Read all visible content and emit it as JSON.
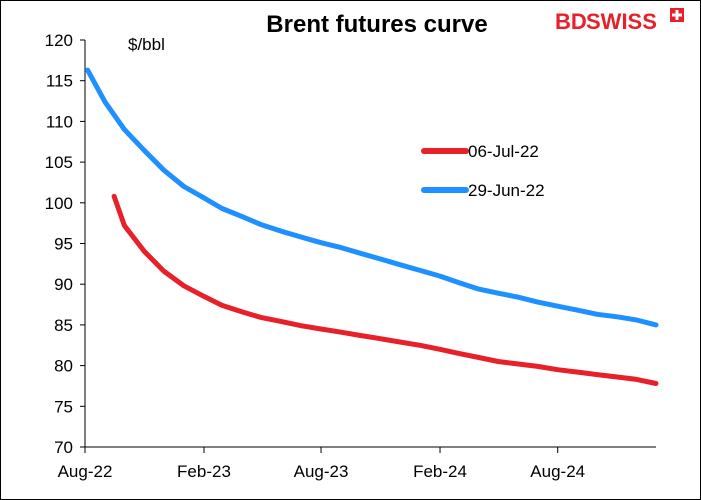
{
  "chart_data": {
    "type": "line",
    "title": "Brent futures curve",
    "ylabel": "$/bbl",
    "xlabel": "",
    "ylim": [
      70,
      120
    ],
    "yticks": [
      70,
      75,
      80,
      85,
      90,
      95,
      100,
      105,
      110,
      115,
      120
    ],
    "xlim": [
      "2022-08-01",
      "2024-12-31"
    ],
    "xticks": [
      {
        "date": "2022-08-01",
        "label": "Aug-22"
      },
      {
        "date": "2023-02-01",
        "label": "Feb-23"
      },
      {
        "date": "2023-08-01",
        "label": "Aug-23"
      },
      {
        "date": "2024-02-01",
        "label": "Feb-24"
      },
      {
        "date": "2024-08-01",
        "label": "Aug-24"
      }
    ],
    "grid": false,
    "legend_position": "right",
    "series": [
      {
        "name": "06-Jul-22",
        "color": "#e8202a",
        "x": [
          "2022-09-15",
          "2022-10-01",
          "2022-11-01",
          "2022-12-01",
          "2023-01-01",
          "2023-02-01",
          "2023-03-01",
          "2023-04-01",
          "2023-05-01",
          "2023-06-01",
          "2023-07-01",
          "2023-08-01",
          "2023-09-01",
          "2023-10-01",
          "2023-11-01",
          "2023-12-01",
          "2024-01-01",
          "2024-02-01",
          "2024-03-01",
          "2024-04-01",
          "2024-05-01",
          "2024-06-01",
          "2024-07-01",
          "2024-08-01",
          "2024-09-01",
          "2024-10-01",
          "2024-11-01",
          "2024-12-01",
          "2024-12-31"
        ],
        "y": [
          100.8,
          97.2,
          94.0,
          91.6,
          89.8,
          88.5,
          87.4,
          86.6,
          85.9,
          85.4,
          84.9,
          84.5,
          84.1,
          83.7,
          83.3,
          82.9,
          82.5,
          82.0,
          81.5,
          81.0,
          80.5,
          80.2,
          79.9,
          79.5,
          79.2,
          78.9,
          78.6,
          78.3,
          77.8
        ]
      },
      {
        "name": "29-Jun-22",
        "color": "#1e90ff",
        "x": [
          "2022-08-05",
          "2022-09-01",
          "2022-10-01",
          "2022-11-01",
          "2022-12-01",
          "2023-01-01",
          "2023-02-01",
          "2023-03-01",
          "2023-04-01",
          "2023-05-01",
          "2023-06-01",
          "2023-07-01",
          "2023-08-01",
          "2023-09-01",
          "2023-10-01",
          "2023-11-01",
          "2023-12-01",
          "2024-01-01",
          "2024-02-01",
          "2024-03-01",
          "2024-04-01",
          "2024-05-01",
          "2024-06-01",
          "2024-07-01",
          "2024-08-01",
          "2024-09-01",
          "2024-10-01",
          "2024-11-01",
          "2024-12-01",
          "2024-12-31"
        ],
        "y": [
          116.3,
          112.4,
          109.0,
          106.4,
          104.0,
          102.0,
          100.6,
          99.3,
          98.3,
          97.3,
          96.5,
          95.8,
          95.1,
          94.5,
          93.8,
          93.1,
          92.4,
          91.7,
          91.0,
          90.2,
          89.4,
          88.9,
          88.4,
          87.8,
          87.3,
          86.8,
          86.3,
          86.0,
          85.6,
          85.0
        ]
      }
    ]
  },
  "logo": {
    "text_left": "BD",
    "text_right": "SWISS",
    "color": "#e8202a"
  }
}
